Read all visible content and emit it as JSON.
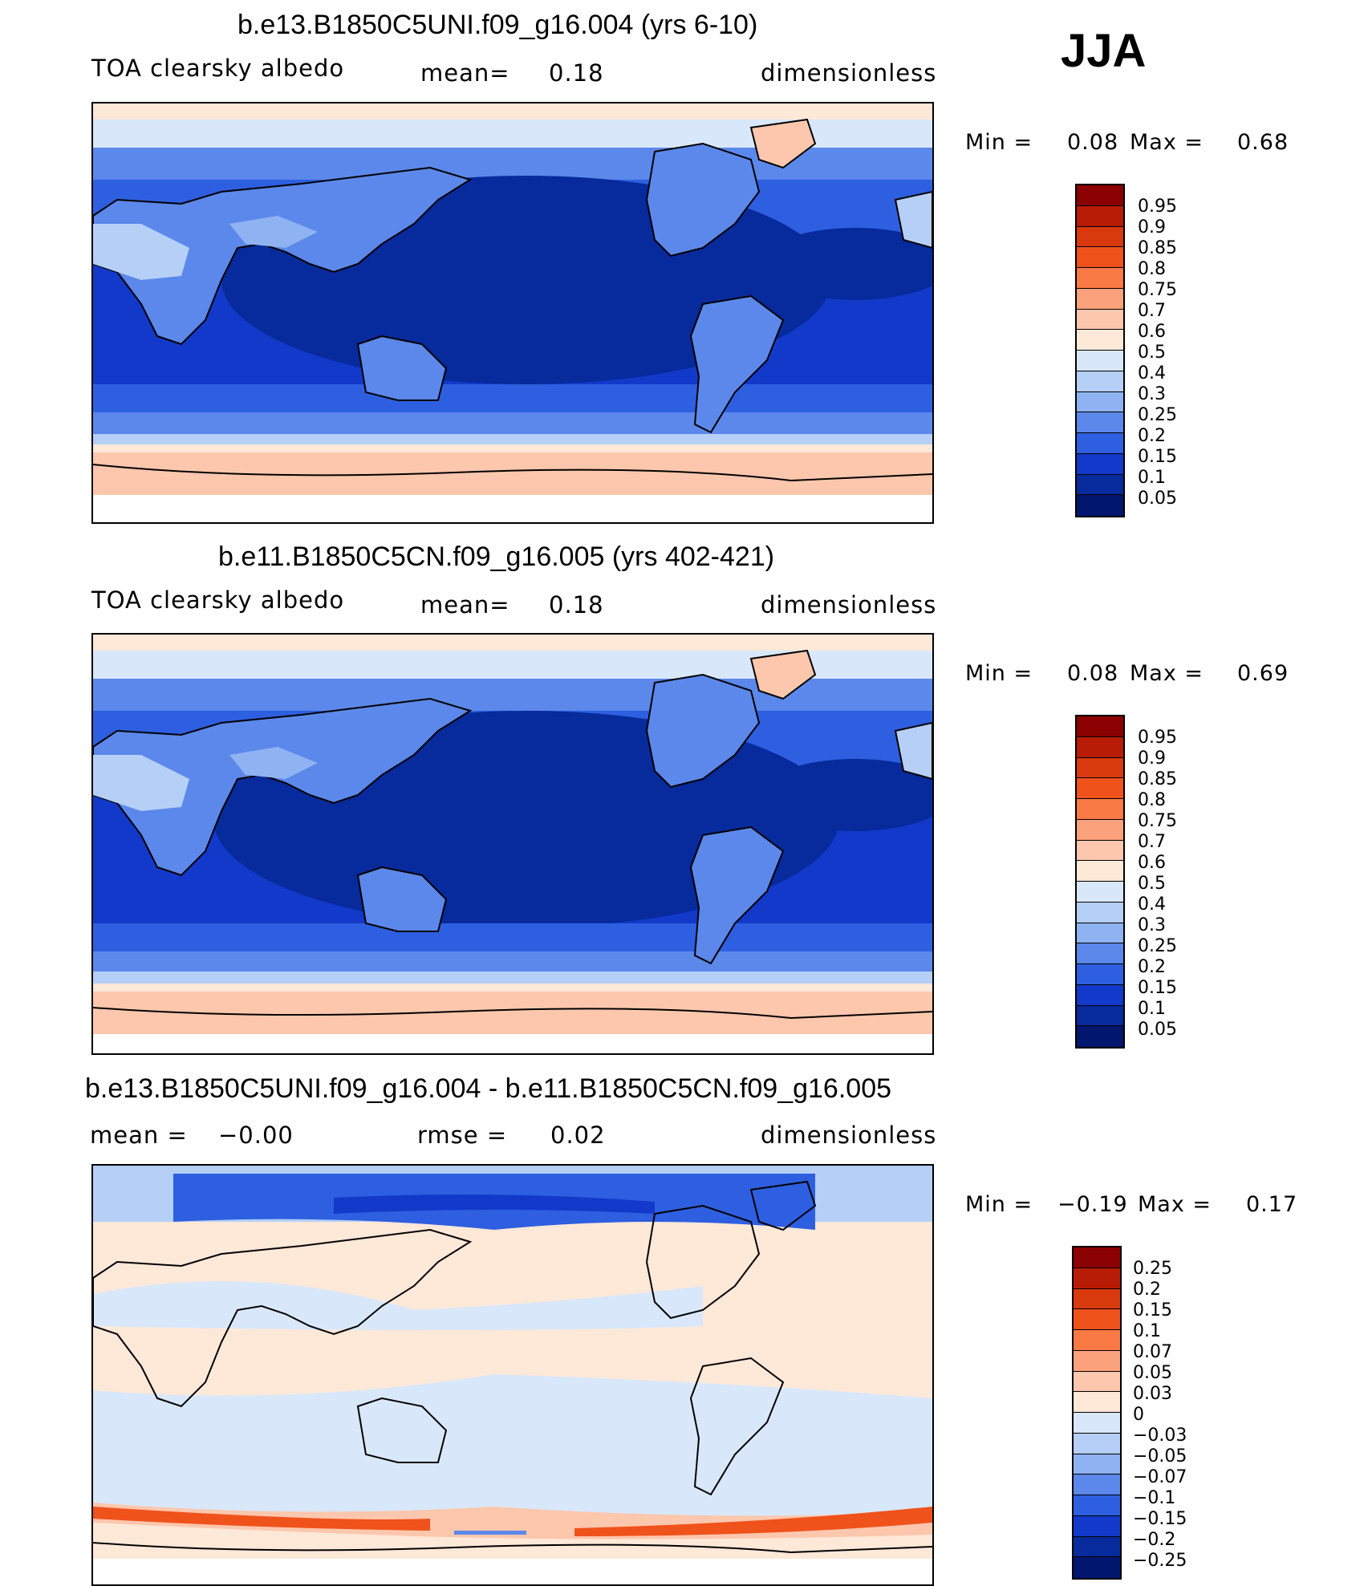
{
  "season": "JJA",
  "panels": [
    {
      "title": "b.e13.B1850C5UNI.f09_g16.004 (yrs 6-10)",
      "variable": "TOA clearsky albedo",
      "mean_label": "mean=",
      "mean_value": "0.18",
      "units": "dimensionless",
      "min_label": "Min =",
      "min_value": "0.08",
      "max_label": "Max =",
      "max_value": "0.68",
      "ticks": [
        "0.95",
        "0.9",
        "0.85",
        "0.8",
        "0.75",
        "0.7",
        "0.6",
        "0.5",
        "0.4",
        "0.3",
        "0.25",
        "0.2",
        "0.15",
        "0.1",
        "0.05"
      ]
    },
    {
      "title": "b.e11.B1850C5CN.f09_g16.005 (yrs 402-421)",
      "variable": "TOA clearsky albedo",
      "mean_label": "mean=",
      "mean_value": "0.18",
      "units": "dimensionless",
      "min_label": "Min =",
      "min_value": "0.08",
      "max_label": "Max =",
      "max_value": "0.69",
      "ticks": [
        "0.95",
        "0.9",
        "0.85",
        "0.8",
        "0.75",
        "0.7",
        "0.6",
        "0.5",
        "0.4",
        "0.3",
        "0.25",
        "0.2",
        "0.15",
        "0.1",
        "0.05"
      ]
    },
    {
      "title": "b.e13.B1850C5UNI.f09_g16.004 - b.e11.B1850C5CN.f09_g16.005",
      "mean_label": "mean =",
      "mean_value": "−0.00",
      "rmse_label": "rmse =",
      "rmse_value": "0.02",
      "units": "dimensionless",
      "min_label": "Min =",
      "min_value": "−0.19",
      "max_label": "Max =",
      "max_value": "0.17",
      "ticks": [
        "0.25",
        "0.2",
        "0.15",
        "0.1",
        "0.07",
        "0.05",
        "0.03",
        "0",
        "−0.03",
        "−0.05",
        "−0.07",
        "−0.1",
        "−0.15",
        "−0.2",
        "−0.25"
      ]
    }
  ],
  "colors": {
    "abs_palette": [
      "#8b0000",
      "#b81c06",
      "#d93a0d",
      "#f0521c",
      "#fa7a45",
      "#fba27c",
      "#fdc7ad",
      "#fee8d8",
      "#d8e8fa",
      "#b5cff7",
      "#8fb3f2",
      "#5b88ea",
      "#2d5fe0",
      "#1239c9",
      "#072a9c",
      "#00166f"
    ],
    "diff_palette": [
      "#8b0000",
      "#b81c06",
      "#d93a0d",
      "#f0521c",
      "#fa7a45",
      "#fba27c",
      "#fdc7ad",
      "#fee8d8",
      "#d8e8fa",
      "#b5cff7",
      "#8fb3f2",
      "#5b88ea",
      "#2d5fe0",
      "#1239c9",
      "#072a9c",
      "#00166f"
    ]
  }
}
